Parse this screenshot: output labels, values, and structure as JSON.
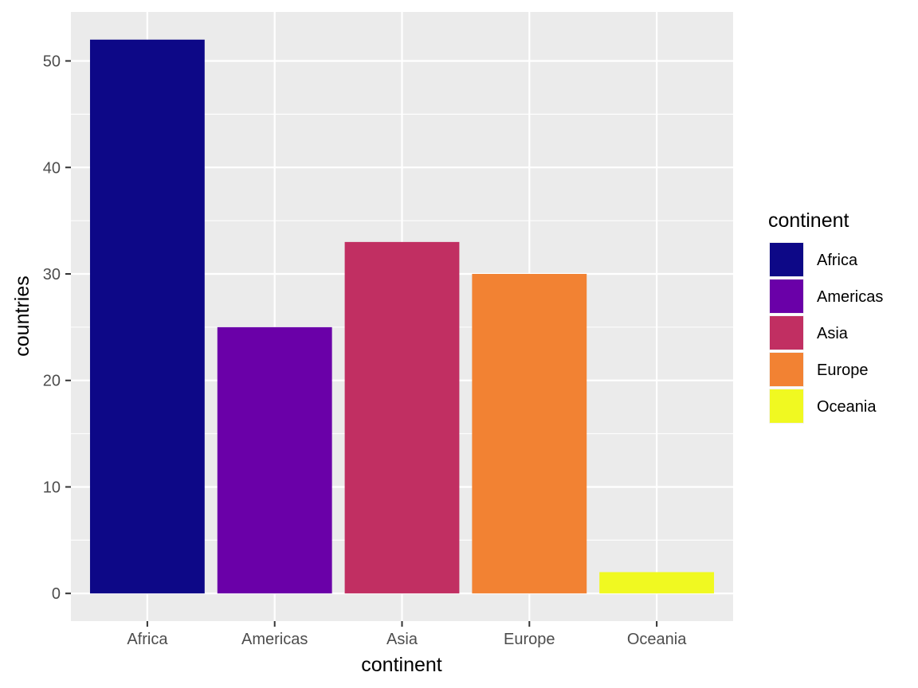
{
  "chart_data": {
    "type": "bar",
    "categories": [
      "Africa",
      "Americas",
      "Asia",
      "Europe",
      "Oceania"
    ],
    "values": [
      52,
      25,
      33,
      30,
      2
    ],
    "colors": [
      "#0d0887",
      "#6a00a8",
      "#c12f62",
      "#f28233",
      "#f0f921"
    ],
    "xlabel": "continent",
    "ylabel": "countries",
    "ylim": [
      -2.6,
      54.6
    ],
    "yticks": [
      0,
      10,
      20,
      30,
      40,
      50
    ],
    "grid": true,
    "legend": {
      "title": "continent",
      "placement": "right",
      "items": [
        "Africa",
        "Americas",
        "Asia",
        "Europe",
        "Oceania"
      ]
    }
  }
}
